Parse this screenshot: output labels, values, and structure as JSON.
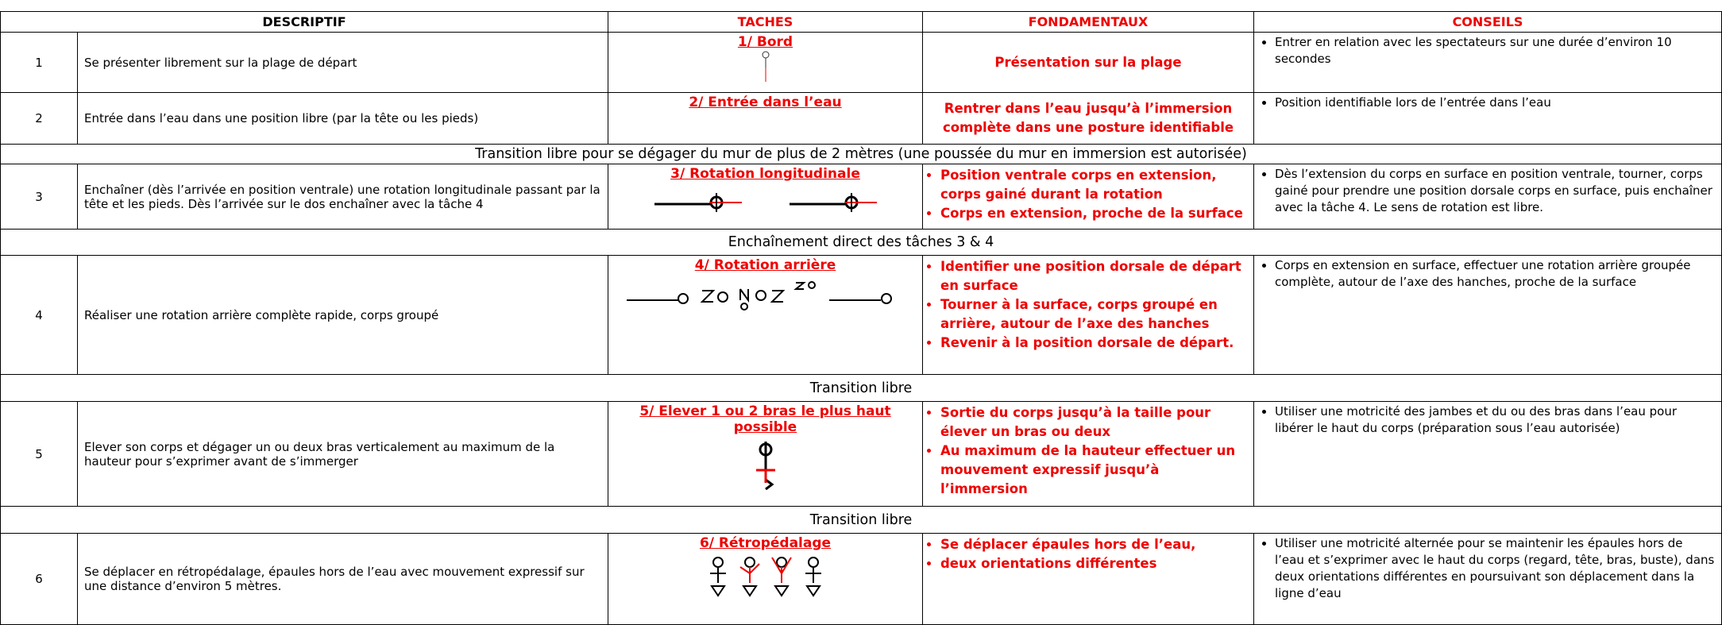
{
  "table": {
    "headers": [
      "DESCRIPTIF",
      "TACHES",
      "FONDAMENTAUX",
      "CONSEILS"
    ],
    "rows": [
      {
        "number": "1",
        "descriptif": "Se présenter librement sur la plage de départ",
        "tache": "1/ Bord",
        "fondamentaux": "Présentation sur la plage",
        "conseils": [
          "Entrer en relation avec les spectateurs sur une durée d’environ 10 secondes"
        ]
      },
      {
        "number": "2",
        "descriptif": "Entrée dans l’eau dans une position libre (par la tête ou les pieds)",
        "tache": "2/ Entrée dans l’eau",
        "fondamentaux": "Rentrer dans l’eau jusqu’à l’immersion complète dans une posture identifiable",
        "conseils": [
          "Position identifiable lors de l’entrée dans l’eau"
        ]
      },
      {
        "transition": "Transition libre pour se dégager du mur de plus de 2 mètres (une poussée du mur en immersion est autorisée)"
      },
      {
        "number": "3",
        "descriptif": "Enchaîner (dès l’arrivée en position ventrale) une rotation longitudinale passant par la tête et les pieds. Dès l’arrivée sur le dos enchaîner avec la tâche 4",
        "tache": "3/ Rotation longitudinale",
        "fondamentaux": [
          "Position ventrale corps en extension, corps gainé durant la rotation",
          "Corps en extension, proche de la surface"
        ],
        "conseils": [
          "Dès l’extension du corps en surface en position ventrale, tourner, corps gainé pour prendre une position dorsale corps en surface, puis enchaîner avec la tâche 4. Le sens de rotation est libre."
        ]
      },
      {
        "transition": "Enchaînement direct des tâches 3 & 4"
      },
      {
        "number": "4",
        "descriptif": "Réaliser une rotation arrière complète rapide, corps groupé",
        "tache": "4/ Rotation arrière",
        "fondamentaux": [
          "Identifier une position dorsale de départ en surface",
          "Tourner à la surface, corps groupé en arrière, autour de l’axe des hanches",
          "Revenir à la position dorsale de départ."
        ],
        "conseils": [
          "Corps en extension en surface, effectuer une rotation arrière groupée complète, autour de l’axe des hanches, proche de la surface"
        ]
      },
      {
        "transition": "Transition libre"
      },
      {
        "number": "5",
        "descriptif": "Elever son corps et dégager un ou deux bras verticalement au maximum de la hauteur pour s’exprimer avant de s’immerger",
        "tache": "5/ Elever 1 ou 2 bras le plus haut possible",
        "fondamentaux": [
          "Sortie du corps jusqu’à la taille pour élever un bras ou deux",
          "Au maximum de la hauteur  effectuer un mouvement expressif jusqu’à l’immersion"
        ],
        "conseils": [
          "Utiliser une motricité des jambes et du ou des bras dans l’eau pour libérer le haut du corps (préparation sous l’eau autorisée)"
        ]
      },
      {
        "transition": "Transition libre"
      },
      {
        "number": "6",
        "descriptif": "Se déplacer en rétropédalage, épaules hors de l’eau avec mouvement expressif sur une distance d’environ 5 mètres.",
        "tache": "6/ Rétropédalage",
        "fondamentaux": [
          "Se déplacer épaules hors de l’eau,",
          "deux orientations différentes"
        ],
        "conseils": [
          "Utiliser une motricité alternée pour se maintenir les épaules hors de l’eau et s’exprimer avec le haut du corps (regard, tête,  bras, buste), dans deux orientations différentes en poursuivant son déplacement dans la ligne d’eau"
        ]
      }
    ]
  }
}
